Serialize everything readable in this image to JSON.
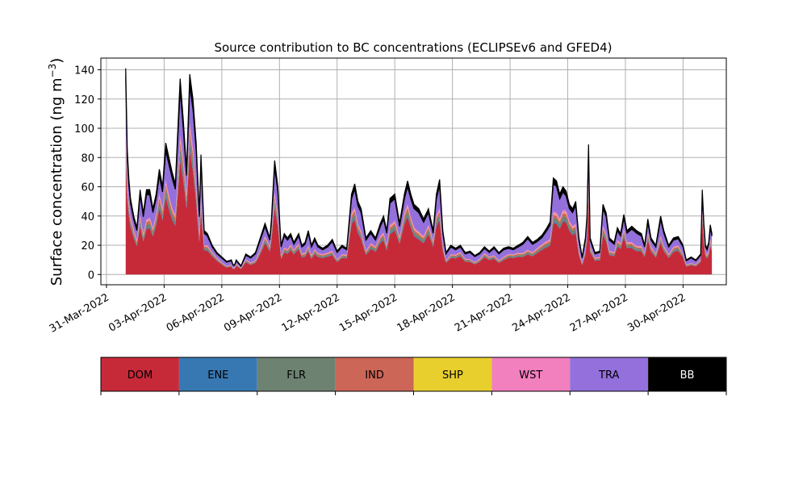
{
  "chart_data": {
    "type": "area",
    "title": "Source contribution to BC concentrations (ECLIPSEv6 and GFED4)",
    "ylabel": "Surface concentration (ng m",
    "ylabel_sup": "−3",
    "ylabel_close": ")",
    "xlabel": "",
    "ylim": [
      -7,
      148
    ],
    "xlim": [
      "2022-03-30T17:00",
      "2022-05-02T06:00"
    ],
    "data_range": [
      "2022-04-01T00:00",
      "2022-05-01T12:00"
    ],
    "y_ticks": [
      0,
      20,
      40,
      60,
      80,
      100,
      120,
      140
    ],
    "x_ticks": [
      "31-Mar-2022",
      "03-Apr-2022",
      "06-Apr-2022",
      "09-Apr-2022",
      "12-Apr-2022",
      "15-Apr-2022",
      "18-Apr-2022",
      "21-Apr-2022",
      "24-Apr-2022",
      "27-Apr-2022",
      "30-Apr-2022"
    ],
    "x_tick_dates": [
      "2022-03-31",
      "2022-04-03",
      "2022-04-06",
      "2022-04-09",
      "2022-04-12",
      "2022-04-15",
      "2022-04-18",
      "2022-04-21",
      "2022-04-24",
      "2022-04-27",
      "2022-04-30"
    ],
    "grid": true,
    "stacking": "cumulative",
    "fractions": {
      "DOM": 0.58,
      "ENE": 0.015,
      "FLR": 0.045,
      "IND": 0.035,
      "SHP": 0.008,
      "WST": 0.027
    },
    "bb_ratio": 0.06,
    "total_series": [
      [
        "2022-04-01T00:00",
        141
      ],
      [
        "2022-04-01T02:00",
        85
      ],
      [
        "2022-04-01T05:00",
        55
      ],
      [
        "2022-04-01T10:00",
        40
      ],
      [
        "2022-04-01T14:00",
        32
      ],
      [
        "2022-04-01T18:00",
        58
      ],
      [
        "2022-04-01T22:00",
        42
      ],
      [
        "2022-04-02T02:00",
        58
      ],
      [
        "2022-04-02T06:00",
        58
      ],
      [
        "2022-04-02T10:00",
        45
      ],
      [
        "2022-04-02T14:00",
        55
      ],
      [
        "2022-04-02T18:00",
        72
      ],
      [
        "2022-04-02T22:00",
        60
      ],
      [
        "2022-04-03T02:00",
        90
      ],
      [
        "2022-04-03T06:00",
        80
      ],
      [
        "2022-04-03T10:00",
        70
      ],
      [
        "2022-04-03T14:00",
        62
      ],
      [
        "2022-04-03T20:00",
        134
      ],
      [
        "2022-04-04T00:00",
        105
      ],
      [
        "2022-04-04T04:00",
        72
      ],
      [
        "2022-04-04T08:00",
        137
      ],
      [
        "2022-04-04T12:00",
        120
      ],
      [
        "2022-04-04T16:00",
        90
      ],
      [
        "2022-04-04T20:00",
        42
      ],
      [
        "2022-04-04T22:00",
        82
      ],
      [
        "2022-04-05T02:00",
        30
      ],
      [
        "2022-04-05T06:00",
        28
      ],
      [
        "2022-04-05T12:00",
        20
      ],
      [
        "2022-04-05T18:00",
        15
      ],
      [
        "2022-04-06T00:00",
        12
      ],
      [
        "2022-04-06T06:00",
        9
      ],
      [
        "2022-04-06T12:00",
        10
      ],
      [
        "2022-04-06T15:00",
        5
      ],
      [
        "2022-04-06T18:00",
        10
      ],
      [
        "2022-04-07T00:00",
        6
      ],
      [
        "2022-04-07T06:00",
        14
      ],
      [
        "2022-04-07T12:00",
        12
      ],
      [
        "2022-04-07T18:00",
        15
      ],
      [
        "2022-04-08T00:00",
        25
      ],
      [
        "2022-04-08T06:00",
        35
      ],
      [
        "2022-04-08T12:00",
        25
      ],
      [
        "2022-04-08T14:00",
        38
      ],
      [
        "2022-04-08T18:00",
        78
      ],
      [
        "2022-04-08T22:00",
        60
      ],
      [
        "2022-04-09T02:00",
        20
      ],
      [
        "2022-04-09T06:00",
        28
      ],
      [
        "2022-04-09T10:00",
        25
      ],
      [
        "2022-04-09T14:00",
        28
      ],
      [
        "2022-04-09T18:00",
        22
      ],
      [
        "2022-04-10T00:00",
        28
      ],
      [
        "2022-04-10T04:00",
        20
      ],
      [
        "2022-04-10T08:00",
        22
      ],
      [
        "2022-04-10T12:00",
        30
      ],
      [
        "2022-04-10T16:00",
        20
      ],
      [
        "2022-04-10T20:00",
        25
      ],
      [
        "2022-04-11T00:00",
        20
      ],
      [
        "2022-04-11T06:00",
        18
      ],
      [
        "2022-04-11T12:00",
        20
      ],
      [
        "2022-04-11T18:00",
        24
      ],
      [
        "2022-04-12T00:00",
        16
      ],
      [
        "2022-04-12T06:00",
        20
      ],
      [
        "2022-04-12T12:00",
        18
      ],
      [
        "2022-04-12T18:00",
        55
      ],
      [
        "2022-04-12T22:00",
        62
      ],
      [
        "2022-04-13T02:00",
        50
      ],
      [
        "2022-04-13T06:00",
        45
      ],
      [
        "2022-04-13T12:00",
        25
      ],
      [
        "2022-04-13T18:00",
        30
      ],
      [
        "2022-04-14T00:00",
        25
      ],
      [
        "2022-04-14T06:00",
        35
      ],
      [
        "2022-04-14T10:00",
        40
      ],
      [
        "2022-04-14T14:00",
        30
      ],
      [
        "2022-04-14T18:00",
        52
      ],
      [
        "2022-04-15T00:00",
        55
      ],
      [
        "2022-04-15T06:00",
        35
      ],
      [
        "2022-04-15T12:00",
        55
      ],
      [
        "2022-04-15T16:00",
        64
      ],
      [
        "2022-04-15T20:00",
        55
      ],
      [
        "2022-04-16T00:00",
        48
      ],
      [
        "2022-04-16T06:00",
        45
      ],
      [
        "2022-04-16T12:00",
        38
      ],
      [
        "2022-04-16T18:00",
        45
      ],
      [
        "2022-04-17T00:00",
        30
      ],
      [
        "2022-04-17T04:00",
        55
      ],
      [
        "2022-04-17T08:00",
        65
      ],
      [
        "2022-04-17T12:00",
        30
      ],
      [
        "2022-04-17T16:00",
        15
      ],
      [
        "2022-04-17T22:00",
        20
      ],
      [
        "2022-04-18T04:00",
        18
      ],
      [
        "2022-04-18T10:00",
        20
      ],
      [
        "2022-04-18T16:00",
        15
      ],
      [
        "2022-04-18T22:00",
        16
      ],
      [
        "2022-04-19T04:00",
        13
      ],
      [
        "2022-04-19T10:00",
        15
      ],
      [
        "2022-04-19T16:00",
        19
      ],
      [
        "2022-04-19T22:00",
        16
      ],
      [
        "2022-04-20T04:00",
        19
      ],
      [
        "2022-04-20T10:00",
        15
      ],
      [
        "2022-04-20T16:00",
        18
      ],
      [
        "2022-04-20T22:00",
        19
      ],
      [
        "2022-04-21T04:00",
        18
      ],
      [
        "2022-04-21T10:00",
        20
      ],
      [
        "2022-04-21T16:00",
        22
      ],
      [
        "2022-04-21T22:00",
        26
      ],
      [
        "2022-04-22T04:00",
        22
      ],
      [
        "2022-04-22T10:00",
        24
      ],
      [
        "2022-04-22T16:00",
        27
      ],
      [
        "2022-04-22T22:00",
        32
      ],
      [
        "2022-04-23T02:00",
        36
      ],
      [
        "2022-04-23T06:00",
        66
      ],
      [
        "2022-04-23T10:00",
        64
      ],
      [
        "2022-04-23T14:00",
        55
      ],
      [
        "2022-04-23T18:00",
        60
      ],
      [
        "2022-04-23T22:00",
        57
      ],
      [
        "2022-04-24T02:00",
        48
      ],
      [
        "2022-04-24T06:00",
        45
      ],
      [
        "2022-04-24T10:00",
        50
      ],
      [
        "2022-04-24T14:00",
        25
      ],
      [
        "2022-04-24T18:00",
        12
      ],
      [
        "2022-04-24T22:00",
        25
      ],
      [
        "2022-04-25T00:00",
        40
      ],
      [
        "2022-04-25T02:00",
        89
      ],
      [
        "2022-04-25T04:00",
        25
      ],
      [
        "2022-04-25T10:00",
        15
      ],
      [
        "2022-04-25T16:00",
        16
      ],
      [
        "2022-04-25T20:00",
        48
      ],
      [
        "2022-04-26T00:00",
        42
      ],
      [
        "2022-04-26T04:00",
        25
      ],
      [
        "2022-04-26T10:00",
        22
      ],
      [
        "2022-04-26T14:00",
        32
      ],
      [
        "2022-04-26T18:00",
        28
      ],
      [
        "2022-04-26T22:00",
        41
      ],
      [
        "2022-04-27T02:00",
        30
      ],
      [
        "2022-04-27T08:00",
        33
      ],
      [
        "2022-04-27T14:00",
        30
      ],
      [
        "2022-04-27T20:00",
        28
      ],
      [
        "2022-04-28T00:00",
        20
      ],
      [
        "2022-04-28T04:00",
        38
      ],
      [
        "2022-04-28T08:00",
        25
      ],
      [
        "2022-04-28T14:00",
        20
      ],
      [
        "2022-04-28T20:00",
        40
      ],
      [
        "2022-04-29T00:00",
        30
      ],
      [
        "2022-04-29T06:00",
        20
      ],
      [
        "2022-04-29T12:00",
        25
      ],
      [
        "2022-04-29T18:00",
        26
      ],
      [
        "2022-04-30T00:00",
        20
      ],
      [
        "2022-04-30T04:00",
        10
      ],
      [
        "2022-04-30T10:00",
        12
      ],
      [
        "2022-04-30T16:00",
        10
      ],
      [
        "2022-04-30T22:00",
        14
      ],
      [
        "2022-05-01T00:00",
        58
      ],
      [
        "2022-05-01T02:00",
        35
      ],
      [
        "2022-05-01T04:00",
        20
      ],
      [
        "2022-05-01T06:00",
        18
      ],
      [
        "2022-05-01T08:00",
        22
      ],
      [
        "2022-05-01T10:00",
        34
      ],
      [
        "2022-05-01T12:00",
        28
      ]
    ],
    "legend": {
      "placement": "bottom",
      "entries": [
        {
          "name": "DOM",
          "color": "#c62a39",
          "text_color": "#000000"
        },
        {
          "name": "ENE",
          "color": "#3878b2",
          "text_color": "#000000"
        },
        {
          "name": "FLR",
          "color": "#6e8272",
          "text_color": "#000000"
        },
        {
          "name": "IND",
          "color": "#cc6657",
          "text_color": "#000000"
        },
        {
          "name": "SHP",
          "color": "#e8cf2e",
          "text_color": "#000000"
        },
        {
          "name": "WST",
          "color": "#f27fbe",
          "text_color": "#000000"
        },
        {
          "name": "TRA",
          "color": "#9370db",
          "text_color": "#000000"
        },
        {
          "name": "BB",
          "color": "#000000",
          "text_color": "#ffffff"
        }
      ]
    },
    "colors": {
      "grid": "#b0b0b0",
      "axis": "#000000",
      "background": "#ffffff"
    }
  }
}
